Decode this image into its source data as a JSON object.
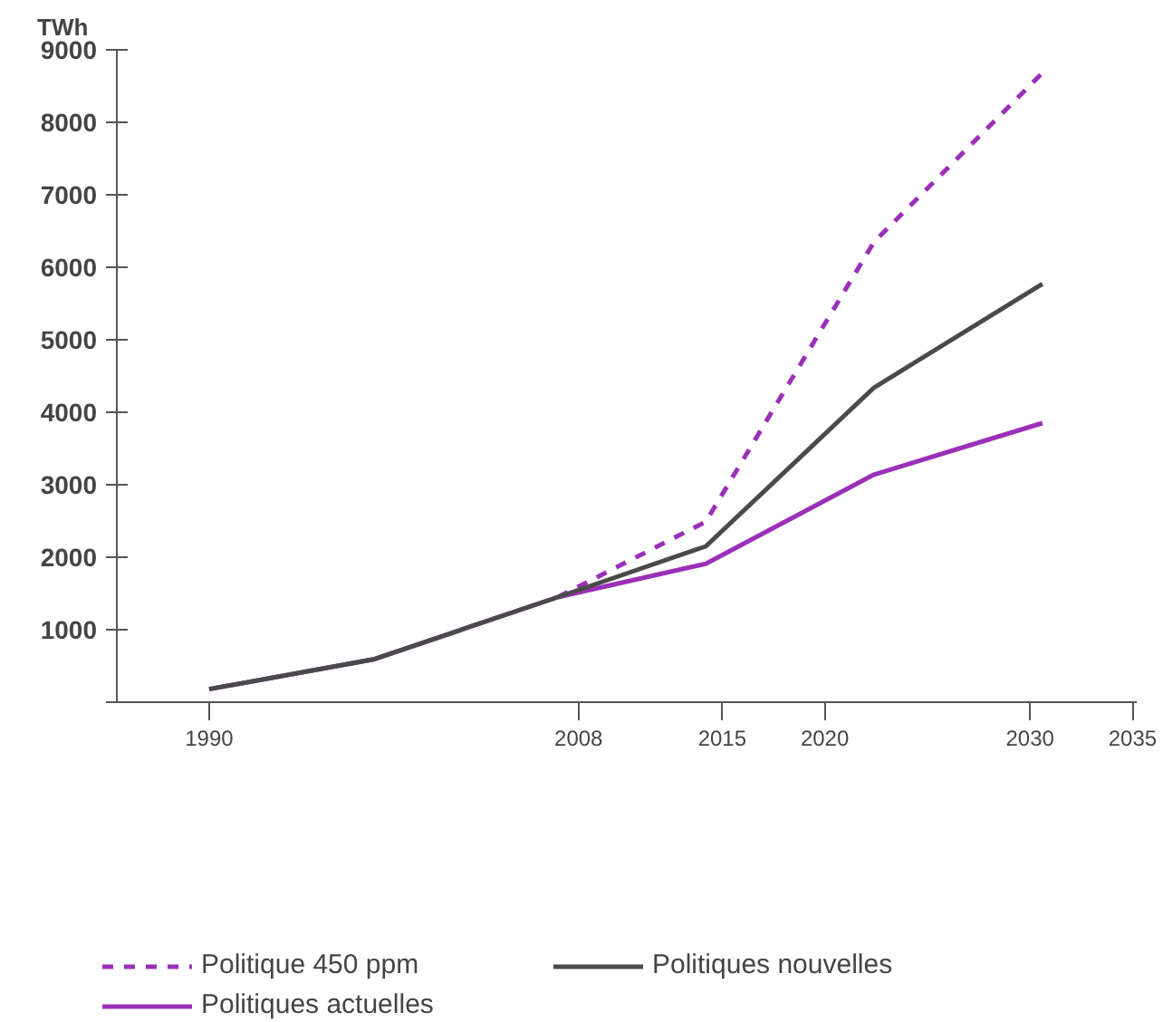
{
  "chart_data": {
    "type": "line",
    "ylabel": "TWh",
    "x": [
      1990,
      1998,
      2007,
      2014.2,
      2022.4,
      2030.6
    ],
    "series": [
      {
        "name": "Politique 450 ppm",
        "color": "#9b30b8",
        "line_style": "dashed",
        "x": [
          2007,
          2014.2,
          2022.4,
          2030.6
        ],
        "values": [
          1450,
          2490,
          6350,
          8680
        ]
      },
      {
        "name": "Politiques actuelles",
        "color": "#9b30b8",
        "line_style": "solid",
        "values": [
          180,
          590,
          1450,
          1910,
          3140,
          3850
        ]
      },
      {
        "name": "Politiques nouvelles",
        "color": "#4a4a4a",
        "line_style": "solid",
        "values": [
          180,
          590,
          1450,
          2150,
          4340,
          5770
        ]
      }
    ],
    "xlim": [
      1985.5,
      2035.2
    ],
    "ylim": [
      0,
      9000
    ],
    "xticks": [
      1990,
      2008,
      2015,
      2020,
      2030,
      2035
    ],
    "yticks": [
      {
        "value": 0,
        "label": null
      },
      1000,
      2000,
      3000,
      4000,
      5000,
      6000,
      7000,
      8000,
      9000
    ],
    "grid": false,
    "legend": "bottom",
    "marker": "none"
  }
}
